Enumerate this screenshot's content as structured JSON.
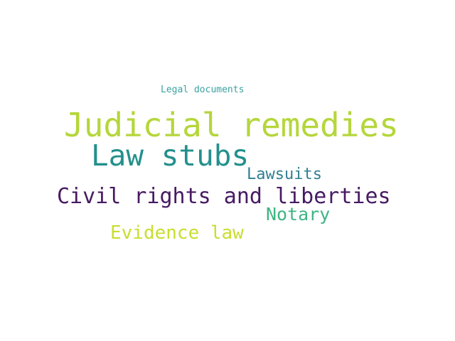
{
  "word_cloud": {
    "words": [
      {
        "id": "legal",
        "text": "Legal documents",
        "color": "#3aa2a0"
      },
      {
        "id": "judicial",
        "text": "Judicial remedies",
        "color": "#b5d63b"
      },
      {
        "id": "stubs",
        "text": "Law stubs",
        "color": "#23908c"
      },
      {
        "id": "lawsuits",
        "text": "Lawsuits",
        "color": "#2f7f91"
      },
      {
        "id": "civil",
        "text": "Civil rights and liberties",
        "color": "#471a63"
      },
      {
        "id": "notary",
        "text": "Notary",
        "color": "#3eb582"
      },
      {
        "id": "evidence",
        "text": "Evidence law",
        "color": "#c9de2e"
      }
    ]
  }
}
